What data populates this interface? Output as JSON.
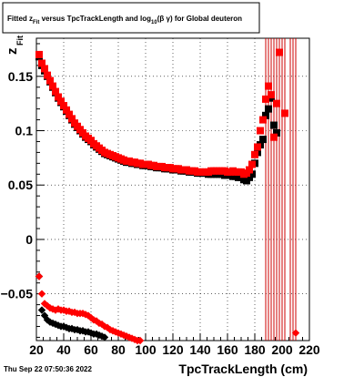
{
  "chart_data": {
    "type": "scatter",
    "title_parts": {
      "pre": "Fitted  z",
      "sub1": "Fit",
      "mid": "  versus TpcTrackLength and log",
      "sub2": "10",
      "post": "(β  γ) for Global deuteron"
    },
    "xlabel": "TpcTrackLength (cm)",
    "ylabel_main": "z",
    "ylabel_sub": "Fit",
    "xlim": [
      20,
      220
    ],
    "ylim": [
      -0.093,
      0.185
    ],
    "xticks": [
      20,
      40,
      60,
      80,
      100,
      120,
      140,
      160,
      180,
      200,
      220
    ],
    "xtick_labels": [
      "20",
      "40",
      "60",
      "80",
      "100",
      "120",
      "140",
      "160",
      "180",
      "200",
      "220"
    ],
    "yticks": [
      -0.05,
      0,
      0.05,
      0.1,
      0.15
    ],
    "ytick_labels": [
      "−0.05",
      "0",
      "0.05",
      "0.1",
      "0.15"
    ],
    "grid": true,
    "footer": "Thu Sep 22 07:50:36 2022",
    "colors": {
      "series_a": "#000000",
      "series_b": "#ff0000"
    },
    "series": [
      {
        "color": "#000000",
        "marker": "square",
        "points": [
          [
            22,
            0.168
          ],
          [
            24,
            0.16
          ],
          [
            26,
            0.155
          ],
          [
            28,
            0.15
          ],
          [
            30,
            0.145
          ],
          [
            32,
            0.14
          ],
          [
            34,
            0.135
          ],
          [
            36,
            0.13
          ],
          [
            38,
            0.126
          ],
          [
            40,
            0.122
          ],
          [
            42,
            0.118
          ],
          [
            44,
            0.114
          ],
          [
            46,
            0.11
          ],
          [
            48,
            0.106
          ],
          [
            50,
            0.103
          ],
          [
            52,
            0.1
          ],
          [
            54,
            0.097
          ],
          [
            56,
            0.094
          ],
          [
            58,
            0.092
          ],
          [
            60,
            0.09
          ],
          [
            62,
            0.087
          ],
          [
            64,
            0.085
          ],
          [
            66,
            0.083
          ],
          [
            68,
            0.081
          ],
          [
            70,
            0.079
          ],
          [
            72,
            0.078
          ],
          [
            74,
            0.077
          ],
          [
            76,
            0.076
          ],
          [
            78,
            0.075
          ],
          [
            80,
            0.074
          ],
          [
            82,
            0.073
          ],
          [
            84,
            0.072
          ],
          [
            86,
            0.071
          ],
          [
            88,
            0.071
          ],
          [
            90,
            0.07
          ],
          [
            92,
            0.07
          ],
          [
            94,
            0.069
          ],
          [
            96,
            0.069
          ],
          [
            98,
            0.068
          ],
          [
            100,
            0.068
          ],
          [
            102,
            0.068
          ],
          [
            104,
            0.067
          ],
          [
            106,
            0.067
          ],
          [
            108,
            0.066
          ],
          [
            110,
            0.066
          ],
          [
            112,
            0.066
          ],
          [
            114,
            0.065
          ],
          [
            116,
            0.065
          ],
          [
            118,
            0.065
          ],
          [
            120,
            0.064
          ],
          [
            122,
            0.064
          ],
          [
            124,
            0.064
          ],
          [
            126,
            0.063
          ],
          [
            128,
            0.063
          ],
          [
            130,
            0.063
          ],
          [
            132,
            0.062
          ],
          [
            134,
            0.062
          ],
          [
            136,
            0.062
          ],
          [
            138,
            0.061
          ],
          [
            140,
            0.061
          ],
          [
            142,
            0.061
          ],
          [
            144,
            0.061
          ],
          [
            146,
            0.06
          ],
          [
            148,
            0.06
          ],
          [
            150,
            0.06
          ],
          [
            152,
            0.06
          ],
          [
            154,
            0.06
          ],
          [
            156,
            0.06
          ],
          [
            158,
            0.059
          ],
          [
            160,
            0.059
          ],
          [
            162,
            0.059
          ],
          [
            164,
            0.058
          ],
          [
            166,
            0.058
          ],
          [
            168,
            0.057
          ],
          [
            170,
            0.057
          ],
          [
            172,
            0.055
          ],
          [
            174,
            0.054
          ],
          [
            176,
            0.057
          ],
          [
            178,
            0.06
          ],
          [
            180,
            0.07
          ],
          [
            182,
            0.08
          ],
          [
            184,
            0.087
          ],
          [
            186,
            0.092
          ],
          [
            188,
            0.114
          ],
          [
            190,
            0.12
          ],
          [
            192,
            0.13
          ],
          [
            194,
            0.105
          ],
          [
            196,
            0.098
          ]
        ],
        "tail_points": [
          [
            22,
            -0.034
          ],
          [
            24,
            -0.065
          ],
          [
            26,
            -0.07
          ],
          [
            28,
            -0.074
          ],
          [
            30,
            -0.076
          ],
          [
            32,
            -0.077
          ],
          [
            34,
            -0.078
          ],
          [
            36,
            -0.079
          ],
          [
            38,
            -0.08
          ],
          [
            40,
            -0.08
          ],
          [
            42,
            -0.081
          ],
          [
            44,
            -0.082
          ],
          [
            46,
            -0.082
          ],
          [
            48,
            -0.083
          ],
          [
            50,
            -0.083
          ],
          [
            52,
            -0.084
          ],
          [
            54,
            -0.084
          ],
          [
            56,
            -0.085
          ],
          [
            58,
            -0.085
          ],
          [
            60,
            -0.086
          ],
          [
            62,
            -0.087
          ],
          [
            64,
            -0.087
          ],
          [
            66,
            -0.088
          ],
          [
            68,
            -0.089
          ],
          [
            70,
            -0.09
          ]
        ]
      },
      {
        "color": "#ff0000",
        "marker": "square",
        "points": [
          [
            22,
            0.17
          ],
          [
            24,
            0.162
          ],
          [
            26,
            0.157
          ],
          [
            28,
            0.151
          ],
          [
            30,
            0.146
          ],
          [
            32,
            0.141
          ],
          [
            34,
            0.136
          ],
          [
            36,
            0.131
          ],
          [
            38,
            0.127
          ],
          [
            40,
            0.123
          ],
          [
            42,
            0.119
          ],
          [
            44,
            0.115
          ],
          [
            46,
            0.111
          ],
          [
            48,
            0.107
          ],
          [
            50,
            0.104
          ],
          [
            52,
            0.101
          ],
          [
            54,
            0.098
          ],
          [
            56,
            0.095
          ],
          [
            58,
            0.093
          ],
          [
            60,
            0.091
          ],
          [
            62,
            0.088
          ],
          [
            64,
            0.086
          ],
          [
            66,
            0.084
          ],
          [
            68,
            0.082
          ],
          [
            70,
            0.08
          ],
          [
            72,
            0.079
          ],
          [
            74,
            0.078
          ],
          [
            76,
            0.077
          ],
          [
            78,
            0.076
          ],
          [
            80,
            0.075
          ],
          [
            82,
            0.074
          ],
          [
            84,
            0.073
          ],
          [
            86,
            0.072
          ],
          [
            88,
            0.072
          ],
          [
            90,
            0.071
          ],
          [
            92,
            0.071
          ],
          [
            94,
            0.07
          ],
          [
            96,
            0.07
          ],
          [
            98,
            0.069
          ],
          [
            100,
            0.069
          ],
          [
            102,
            0.069
          ],
          [
            104,
            0.068
          ],
          [
            106,
            0.068
          ],
          [
            108,
            0.067
          ],
          [
            110,
            0.067
          ],
          [
            112,
            0.067
          ],
          [
            114,
            0.066
          ],
          [
            116,
            0.066
          ],
          [
            118,
            0.066
          ],
          [
            120,
            0.065
          ],
          [
            122,
            0.065
          ],
          [
            124,
            0.065
          ],
          [
            126,
            0.064
          ],
          [
            128,
            0.064
          ],
          [
            130,
            0.064
          ],
          [
            132,
            0.063
          ],
          [
            134,
            0.063
          ],
          [
            136,
            0.063
          ],
          [
            138,
            0.062
          ],
          [
            140,
            0.062
          ],
          [
            142,
            0.062
          ],
          [
            144,
            0.062
          ],
          [
            146,
            0.062
          ],
          [
            148,
            0.063
          ],
          [
            150,
            0.063
          ],
          [
            152,
            0.063
          ],
          [
            154,
            0.063
          ],
          [
            156,
            0.063
          ],
          [
            158,
            0.063
          ],
          [
            160,
            0.062
          ],
          [
            162,
            0.062
          ],
          [
            164,
            0.063
          ],
          [
            166,
            0.062
          ],
          [
            168,
            0.062
          ],
          [
            170,
            0.062
          ],
          [
            172,
            0.06
          ],
          [
            174,
            0.061
          ],
          [
            176,
            0.064
          ],
          [
            178,
            0.069
          ],
          [
            180,
            0.078
          ],
          [
            182,
            0.085
          ],
          [
            184,
            0.1
          ],
          [
            186,
            0.11
          ],
          [
            188,
            0.129
          ],
          [
            190,
            0.141
          ],
          [
            192,
            0.133
          ],
          [
            194,
            0.094
          ],
          [
            196,
            0.125
          ],
          [
            198,
            0.172
          ],
          [
            202,
            0.116
          ]
        ],
        "tail_points": [
          [
            22,
            -0.034
          ],
          [
            24,
            -0.05
          ],
          [
            26,
            -0.059
          ],
          [
            28,
            -0.061
          ],
          [
            30,
            -0.063
          ],
          [
            32,
            -0.064
          ],
          [
            34,
            -0.065
          ],
          [
            36,
            -0.064
          ],
          [
            38,
            -0.065
          ],
          [
            40,
            -0.065
          ],
          [
            42,
            -0.066
          ],
          [
            44,
            -0.066
          ],
          [
            46,
            -0.067
          ],
          [
            48,
            -0.067
          ],
          [
            50,
            -0.068
          ],
          [
            52,
            -0.068
          ],
          [
            54,
            -0.068
          ],
          [
            56,
            -0.069
          ],
          [
            58,
            -0.07
          ],
          [
            60,
            -0.072
          ],
          [
            62,
            -0.074
          ],
          [
            64,
            -0.075
          ],
          [
            66,
            -0.077
          ],
          [
            68,
            -0.078
          ],
          [
            70,
            -0.08
          ],
          [
            72,
            -0.081
          ],
          [
            74,
            -0.083
          ],
          [
            76,
            -0.084
          ],
          [
            78,
            -0.085
          ],
          [
            80,
            -0.086
          ],
          [
            82,
            -0.087
          ],
          [
            84,
            -0.088
          ],
          [
            86,
            -0.089
          ],
          [
            88,
            -0.09
          ],
          [
            90,
            -0.091
          ],
          [
            92,
            -0.092
          ],
          [
            94,
            -0.093
          ],
          [
            96,
            -0.093
          ],
          [
            210,
            -0.086
          ]
        ]
      }
    ],
    "error_bars_x": [
      188,
      190,
      192,
      194,
      196,
      198,
      200,
      202,
      206,
      208,
      210
    ],
    "error_bars_color": "#cc0000"
  }
}
